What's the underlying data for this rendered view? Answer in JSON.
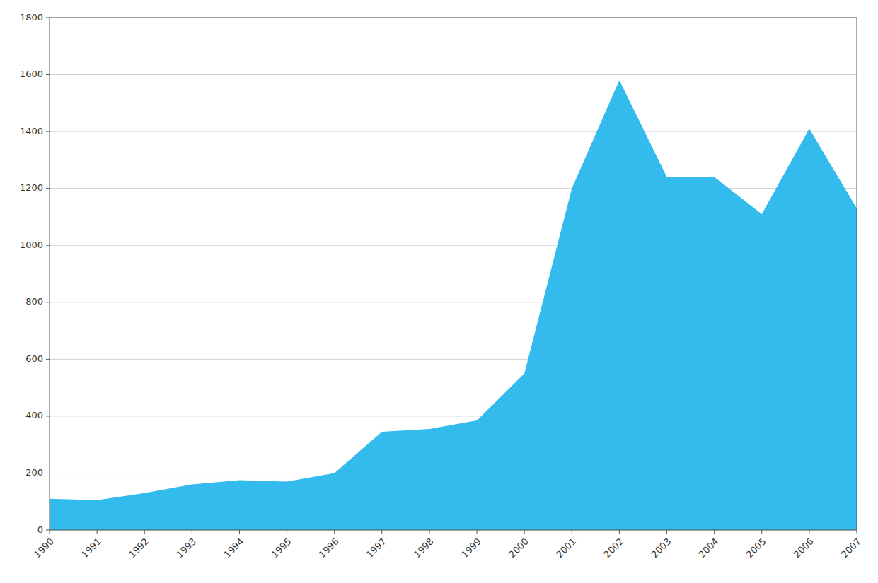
{
  "chart_data": {
    "type": "area",
    "x": [
      1990,
      1991,
      1992,
      1993,
      1994,
      1995,
      1996,
      1997,
      1998,
      1999,
      2000,
      2001,
      2002,
      2003,
      2004,
      2005,
      2006,
      2007
    ],
    "values": [
      110,
      105,
      130,
      160,
      175,
      170,
      200,
      345,
      355,
      385,
      550,
      1200,
      1580,
      1240,
      1240,
      1110,
      1410,
      1130
    ],
    "color": "#33bbee",
    "xlim": [
      1990,
      2007
    ],
    "xticks": [
      1990,
      1991,
      1992,
      1993,
      1994,
      1995,
      1996,
      1997,
      1998,
      1999,
      2000,
      2001,
      2002,
      2003,
      2004,
      2005,
      2006,
      2007
    ],
    "ylim": [
      0,
      1800
    ],
    "yticks": [
      0,
      200,
      400,
      600,
      800,
      1000,
      1200,
      1400,
      1600,
      1800
    ],
    "grid": true
  }
}
